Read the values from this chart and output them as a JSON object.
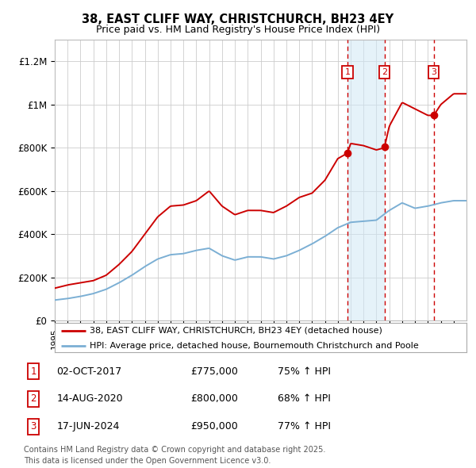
{
  "title": "38, EAST CLIFF WAY, CHRISTCHURCH, BH23 4EY",
  "subtitle": "Price paid vs. HM Land Registry's House Price Index (HPI)",
  "ylim": [
    0,
    1300000
  ],
  "yticks": [
    0,
    200000,
    400000,
    600000,
    800000,
    1000000,
    1200000
  ],
  "ytick_labels": [
    "£0",
    "£200K",
    "£400K",
    "£600K",
    "£800K",
    "£1M",
    "£1.2M"
  ],
  "xlim": [
    1995,
    2027
  ],
  "sales": [
    {
      "label": "1",
      "date": "02-OCT-2017",
      "price": 775000,
      "hpi_pct": "75%",
      "x": 2017.75
    },
    {
      "label": "2",
      "date": "14-AUG-2020",
      "price": 800000,
      "hpi_pct": "68%",
      "x": 2020.62
    },
    {
      "label": "3",
      "date": "17-JUN-2024",
      "price": 950000,
      "hpi_pct": "77%",
      "x": 2024.46
    }
  ],
  "legend_line1": "38, EAST CLIFF WAY, CHRISTCHURCH, BH23 4EY (detached house)",
  "legend_line2": "HPI: Average price, detached house, Bournemouth Christchurch and Poole",
  "footnote": "Contains HM Land Registry data © Crown copyright and database right 2025.\nThis data is licensed under the Open Government Licence v3.0.",
  "red_color": "#cc0000",
  "blue_color": "#7bafd4",
  "bg_color": "#ffffff",
  "grid_color": "#cccccc",
  "red_key_t": [
    1995,
    1996,
    1997,
    1998,
    1999,
    2000,
    2001,
    2002,
    2003,
    2004,
    2005,
    2006,
    2007,
    2008,
    2009,
    2010,
    2011,
    2012,
    2013,
    2014,
    2015,
    2016,
    2017,
    2017.75,
    2018,
    2019,
    2020,
    2020.62,
    2021,
    2022,
    2023,
    2024,
    2024.46,
    2025,
    2026
  ],
  "red_key_v": [
    150000,
    165000,
    175000,
    185000,
    210000,
    260000,
    320000,
    400000,
    480000,
    530000,
    535000,
    555000,
    600000,
    530000,
    490000,
    510000,
    510000,
    500000,
    530000,
    570000,
    590000,
    650000,
    750000,
    775000,
    820000,
    810000,
    790000,
    800000,
    900000,
    1010000,
    980000,
    950000,
    950000,
    1000000,
    1050000
  ],
  "blue_key_t": [
    1995,
    1996,
    1997,
    1998,
    1999,
    2000,
    2001,
    2002,
    2003,
    2004,
    2005,
    2006,
    2007,
    2008,
    2009,
    2010,
    2011,
    2012,
    2013,
    2014,
    2015,
    2016,
    2017,
    2018,
    2019,
    2020,
    2021,
    2022,
    2023,
    2024,
    2025,
    2026
  ],
  "blue_key_v": [
    95000,
    102000,
    112000,
    125000,
    145000,
    175000,
    210000,
    250000,
    285000,
    305000,
    310000,
    325000,
    335000,
    300000,
    280000,
    295000,
    295000,
    285000,
    300000,
    325000,
    355000,
    390000,
    430000,
    455000,
    460000,
    465000,
    510000,
    545000,
    520000,
    530000,
    545000,
    555000
  ]
}
